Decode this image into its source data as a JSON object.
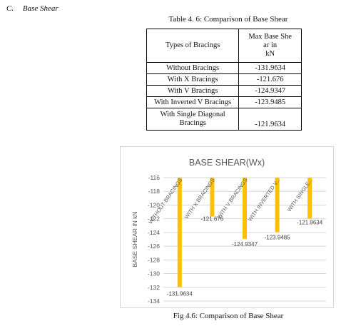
{
  "section": {
    "letter": "C.",
    "title": "Base Shear"
  },
  "table": {
    "caption": "Table 4. 6: Comparison of Base Shear",
    "header_type": "Types of Bracings",
    "header_value_lines": [
      "Max Base She",
      "ar in",
      "kN"
    ],
    "rows": [
      {
        "type": "Without Bracings",
        "value": "-131.9634"
      },
      {
        "type": "With X Bracings",
        "value": "-121.676"
      },
      {
        "type": "With V Bracings",
        "value": "-124.9347"
      },
      {
        "type": "With Inverted V Bracings",
        "value": "-123.9485"
      },
      {
        "type_lines": [
          "With Single Diagonal",
          "Bracings"
        ],
        "value": "-121.9634"
      }
    ]
  },
  "chart_data": {
    "type": "bar",
    "title": "BASE SHEAR(Wx)",
    "ylabel": "BASE SHEAR IN kN",
    "xlabel": "",
    "ylim": [
      -134,
      -116
    ],
    "yticks": [
      -116,
      -118,
      -120,
      -122,
      -124,
      -126,
      -128,
      -130,
      -132,
      -134
    ],
    "categories": [
      "WITHOUT BRACINGS",
      "WITH X BRACINGS",
      "WITH V BRACINGS",
      "WITH INVERTED V...",
      "WITH SINGLE..."
    ],
    "values": [
      -131.9634,
      -121.676,
      -124.9347,
      -123.9485,
      -121.9634
    ],
    "data_labels": [
      "-131.9634",
      "-121.676",
      "-124.9347",
      "-123.9485",
      "-121.9634"
    ],
    "bar_color": "#FFC000",
    "grid": true,
    "legend": "none"
  },
  "figure": {
    "caption": "Fig 4.6: Comparison of Base Shear"
  }
}
